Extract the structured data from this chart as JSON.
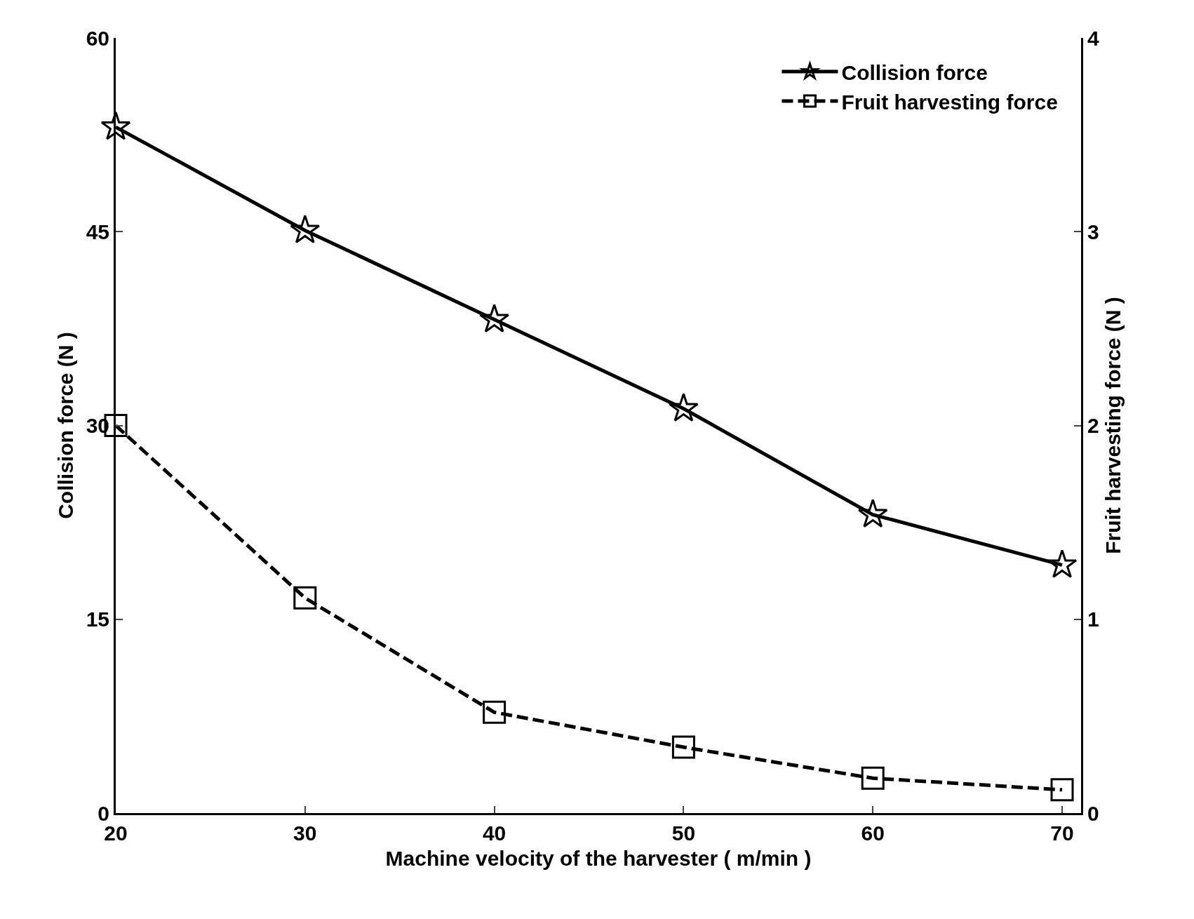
{
  "chart_data": {
    "type": "line",
    "xlabel": "Machine velocity of the harvester ( m/min )",
    "ylabel": "Collision force (N )",
    "y2label": "Fruit harvesting force (N )",
    "x": [
      20,
      30,
      40,
      50,
      60,
      70
    ],
    "series": [
      {
        "name": "Collision force",
        "color": "#000000",
        "values": [
          53.1,
          45.1,
          38.2,
          31.3,
          23.1,
          19.2
        ],
        "marker": "star",
        "line_style": "solid"
      },
      {
        "name": "Fruit harvesting force",
        "color": "#000000",
        "values": [
          2.0,
          1.11,
          0.52,
          0.34,
          0.18,
          0.12
        ],
        "marker": "square",
        "line_style": "dashed",
        "axis": "y2"
      }
    ],
    "xlim": [
      20,
      71
    ],
    "xticks": [
      20,
      30,
      40,
      50,
      60,
      70
    ],
    "ylim": [
      0,
      60
    ],
    "yticks": [
      0,
      15,
      30,
      45,
      60
    ],
    "y2lim": [
      0,
      4
    ],
    "y2ticks": [
      0,
      1,
      2,
      3,
      4
    ],
    "legend": "top right"
  }
}
